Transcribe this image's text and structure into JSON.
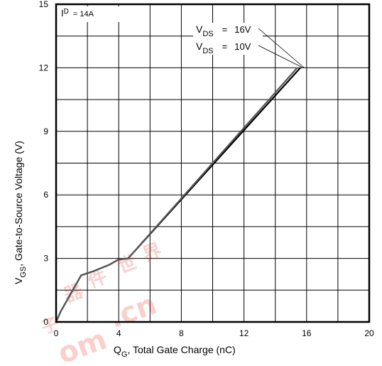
{
  "chart_data": {
    "type": "line",
    "title": "",
    "xlabel": {
      "main": "Q",
      "sub": "G",
      "rest": ", Total Gate Charge (nC)"
    },
    "ylabel": {
      "main": "V",
      "sub": "GS",
      "rest": ", Gate-to-Source Voltage (V)"
    },
    "xlim": [
      0,
      20
    ],
    "ylim": [
      0,
      15
    ],
    "x_ticks": [
      "0",
      "4",
      "8",
      "12",
      "16",
      "20"
    ],
    "y_ticks": [
      "0",
      "3",
      "6",
      "9",
      "12",
      "15"
    ],
    "grid": true,
    "series": [
      {
        "name": "VDS = 16V",
        "x": [
          0,
          0.3,
          1.6,
          2.4,
          3.4,
          4.0,
          4.6,
          15.6
        ],
        "y": [
          0,
          0.5,
          2.2,
          2.4,
          2.7,
          2.95,
          3.0,
          12.0
        ]
      },
      {
        "name": "VDS = 10V",
        "x": [
          0,
          0.3,
          1.6,
          2.4,
          3.4,
          4.0,
          4.6,
          15.4
        ],
        "y": [
          0,
          0.5,
          2.2,
          2.4,
          2.7,
          2.95,
          3.0,
          12.0
        ]
      }
    ],
    "annotations": {
      "id_label": {
        "main": "I",
        "sub": "D",
        "value": "= 14A"
      },
      "vds_labels": [
        {
          "main": "V",
          "sub": "DS",
          "eq": "=",
          "value": "16V"
        },
        {
          "main": "V",
          "sub": "DS",
          "eq": "=",
          "value": "10V"
        }
      ]
    },
    "watermark": [
      "子",
      "器",
      "件",
      "世",
      "界",
      "om",
      ".cn"
    ]
  }
}
